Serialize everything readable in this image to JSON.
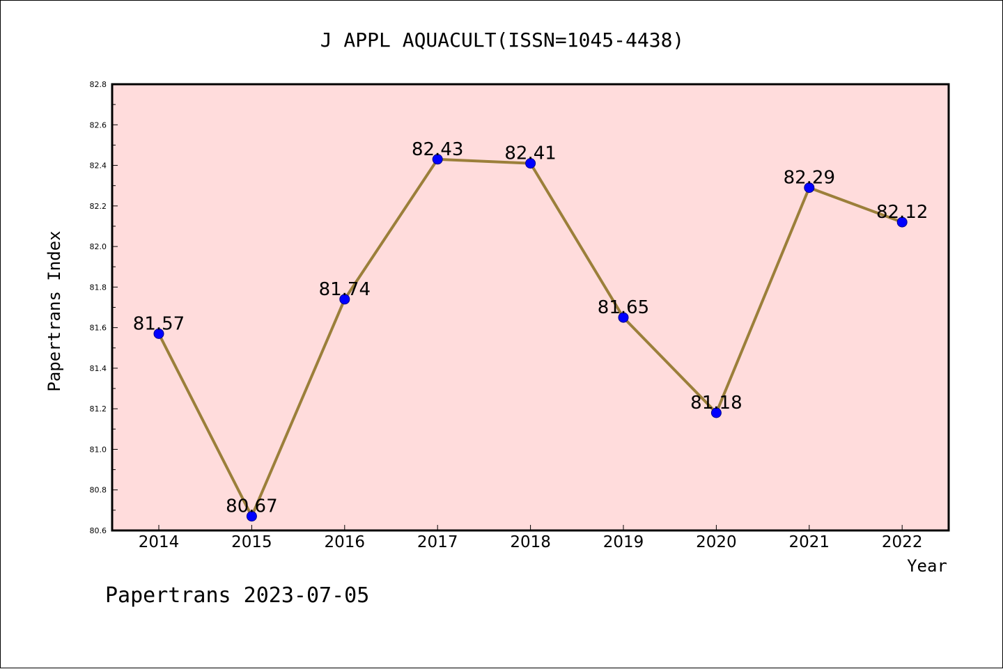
{
  "chart_data": {
    "type": "line",
    "title": "J APPL AQUACULT(ISSN=1045-4438)",
    "xlabel": "Year",
    "ylabel": "Papertrans Index",
    "categories": [
      "2014",
      "2015",
      "2016",
      "2017",
      "2018",
      "2019",
      "2020",
      "2021",
      "2022"
    ],
    "series": [
      {
        "values": [
          81.57,
          80.67,
          81.74,
          82.43,
          82.41,
          81.65,
          81.18,
          82.29,
          82.12
        ],
        "data_labels": [
          "81.57",
          "80.67",
          "81.74",
          "82.43",
          "82.41",
          "81.65",
          "81.18",
          "82.29",
          "82.12"
        ]
      }
    ],
    "ylim": [
      80.6,
      82.8
    ],
    "yticks": [
      80.6,
      80.8,
      81.0,
      81.2,
      81.4,
      81.6,
      81.8,
      82.0,
      82.2,
      82.4,
      82.6,
      82.8
    ],
    "ytick_labels": [
      "80.6",
      "80.8",
      "81.0",
      "81.2",
      "81.4",
      "81.6",
      "81.8",
      "82.0",
      "82.2",
      "82.4",
      "82.6",
      "82.8"
    ],
    "grid": false,
    "legend": "none",
    "colors": {
      "plot_background": "#FFDCDC",
      "line": "#9B7F3A",
      "marker_fill": "#0000FF",
      "marker_edge": "#00008B"
    }
  },
  "footer": {
    "text": "Papertrans 2023-07-05"
  }
}
